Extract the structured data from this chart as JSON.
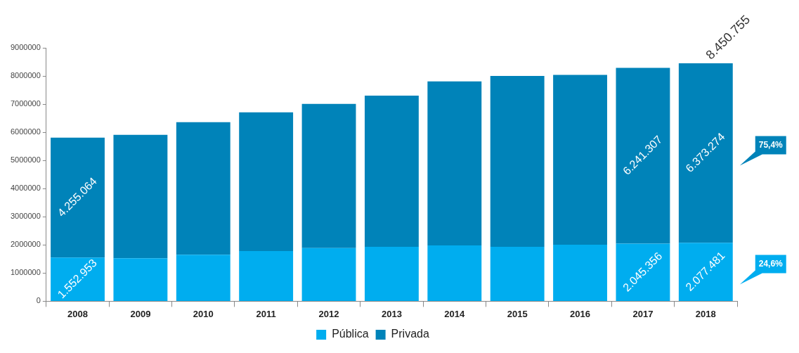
{
  "chart_data": {
    "type": "bar",
    "stacked": true,
    "categories": [
      "2008",
      "2009",
      "2010",
      "2011",
      "2012",
      "2013",
      "2014",
      "2015",
      "2016",
      "2017",
      "2018"
    ],
    "series": [
      {
        "name": "Pública",
        "color": "#00adef",
        "values": [
          1552953,
          1530000,
          1650000,
          1780000,
          1890000,
          1930000,
          1980000,
          1930000,
          2010000,
          2045356,
          2077481
        ],
        "value_labels": [
          "1.552.953",
          null,
          null,
          null,
          null,
          null,
          null,
          null,
          null,
          "2.045.356",
          "2.077.481"
        ]
      },
      {
        "name": "Privada",
        "color": "#0083b9",
        "values": [
          4255064,
          4380000,
          4710000,
          4930000,
          5120000,
          5370000,
          5830000,
          6070000,
          6030000,
          6241307,
          6373274
        ],
        "value_labels": [
          "4.255.064",
          null,
          null,
          null,
          null,
          null,
          null,
          null,
          null,
          "6.241.307",
          "6.373.274"
        ]
      }
    ],
    "totals": [
      null,
      null,
      null,
      null,
      null,
      null,
      null,
      null,
      null,
      null,
      "8.450.755"
    ],
    "ylim": [
      0,
      9000000
    ],
    "yticks": [
      0,
      1000000,
      2000000,
      3000000,
      4000000,
      5000000,
      6000000,
      7000000,
      8000000,
      9000000
    ],
    "grid": false,
    "legend": "bottom",
    "annotations": [
      "24,6%",
      "75,4%"
    ]
  }
}
